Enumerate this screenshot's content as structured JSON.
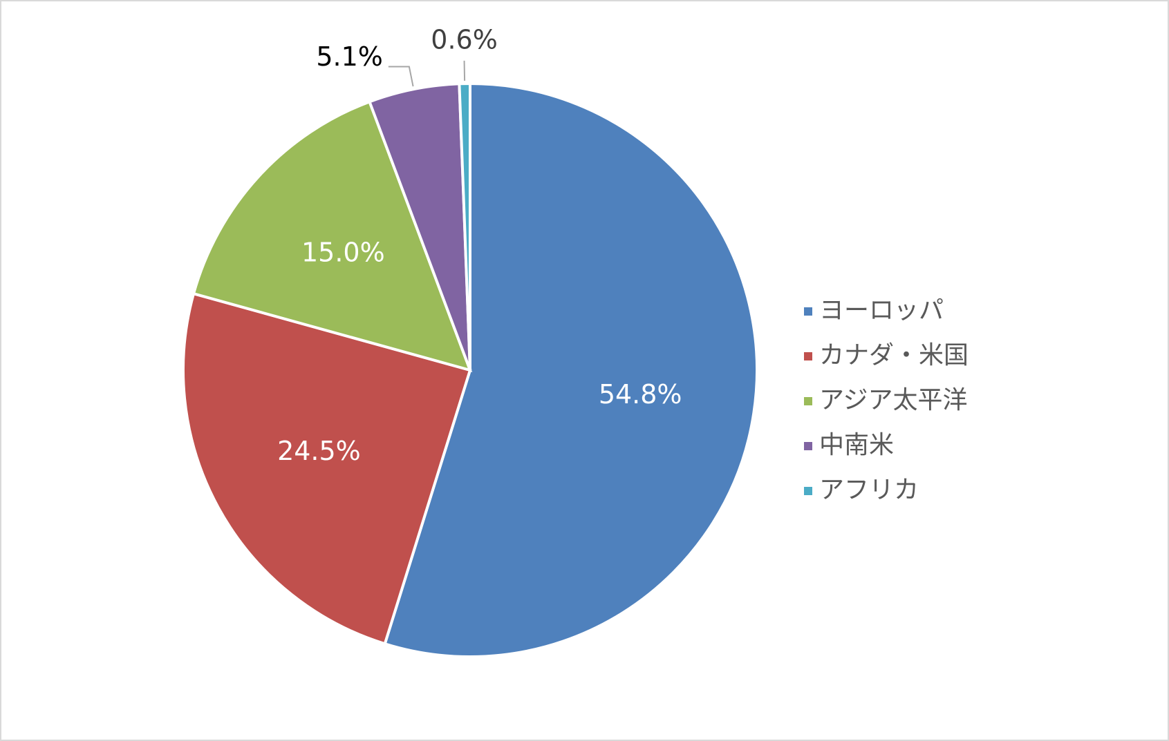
{
  "chart_data": {
    "type": "pie",
    "categories": [
      "ヨーロッパ",
      "カナダ・米国",
      "アジア太平洋",
      "中南米",
      "アフリカ"
    ],
    "values": [
      54.8,
      24.5,
      15.0,
      5.1,
      0.6
    ],
    "value_labels": [
      "54.8%",
      "24.5%",
      "15.0%",
      "5.1%",
      "0.6%"
    ],
    "colors": [
      "#4f81bd",
      "#c0504d",
      "#9bbb59",
      "#8064a2",
      "#4bacc6"
    ],
    "legend": "right"
  }
}
